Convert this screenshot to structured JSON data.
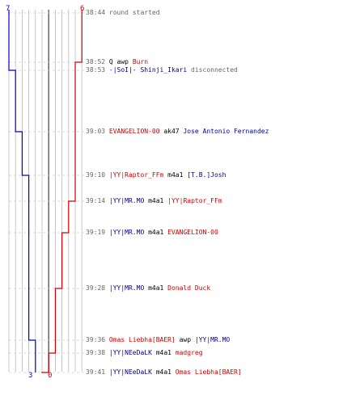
{
  "colors": {
    "team_blue": "#0000cc",
    "team_red": "#cc0000",
    "grid": "#bbbbbb",
    "center_line": "#666666",
    "time": "#666666"
  },
  "scores": {
    "blue_start": "7",
    "red_start": "6",
    "blue_end": "3",
    "red_end": "0"
  },
  "events": [
    {
      "time": "38:44",
      "parts": [
        {
          "text": "round started",
          "c": "gray"
        }
      ]
    },
    {
      "time": "38:52",
      "parts": [
        {
          "text": "Q",
          "c": "blk"
        },
        {
          "text": " awp ",
          "c": "blk"
        },
        {
          "text": "Burn",
          "c": "red"
        }
      ]
    },
    {
      "time": "38:53",
      "parts": [
        {
          "text": "-|SoI|- Shinji_Ikari",
          "c": "blue"
        },
        {
          "text": " disconnected",
          "c": "gray"
        }
      ]
    },
    {
      "time": "39:03",
      "parts": [
        {
          "text": "EVANGELION-00",
          "c": "red"
        },
        {
          "text": " ak47 ",
          "c": "blk"
        },
        {
          "text": "Jose Antonio Fernandez",
          "c": "blue"
        }
      ]
    },
    {
      "time": "39:10",
      "parts": [
        {
          "text": "|YY|Raptor_FFm",
          "c": "red"
        },
        {
          "text": " m4a1 ",
          "c": "blk"
        },
        {
          "text": "[T.B.]Josh",
          "c": "blue"
        }
      ]
    },
    {
      "time": "39:14",
      "parts": [
        {
          "text": "|YY|MR.MO",
          "c": "blue"
        },
        {
          "text": " m4a1 ",
          "c": "blk"
        },
        {
          "text": "|YY|Raptor_FFm",
          "c": "red"
        }
      ]
    },
    {
      "time": "39:19",
      "parts": [
        {
          "text": "|YY|MR.MO",
          "c": "blue"
        },
        {
          "text": " m4a1 ",
          "c": "blk"
        },
        {
          "text": "EVANGELION-00",
          "c": "red"
        }
      ]
    },
    {
      "time": "39:28",
      "parts": [
        {
          "text": "|YY|MR.MO",
          "c": "blue"
        },
        {
          "text": " m4a1 ",
          "c": "blk"
        },
        {
          "text": "Donald Duck",
          "c": "red"
        }
      ]
    },
    {
      "time": "39:36",
      "parts": [
        {
          "text": "Omas Liebha[BAER]",
          "c": "red"
        },
        {
          "text": " awp ",
          "c": "blk"
        },
        {
          "text": "|YY|MR.MO",
          "c": "blue"
        }
      ]
    },
    {
      "time": "39:38",
      "parts": [
        {
          "text": "|YY|NEeDaLK",
          "c": "blue"
        },
        {
          "text": " m4a1 ",
          "c": "blk"
        },
        {
          "text": "madgreg",
          "c": "red"
        }
      ]
    },
    {
      "time": "39:41",
      "parts": [
        {
          "text": "|YY|NEeDaLK",
          "c": "blue"
        },
        {
          "text": " m4a1 ",
          "c": "blk"
        },
        {
          "text": "Omas Liebha[BAER]",
          "c": "red"
        }
      ]
    }
  ],
  "steps": {
    "blue": [
      7,
      7,
      6,
      5,
      4,
      4,
      4,
      4,
      3,
      3,
      3
    ],
    "red": [
      6,
      5,
      5,
      5,
      5,
      4,
      3,
      2,
      2,
      1,
      0
    ]
  }
}
